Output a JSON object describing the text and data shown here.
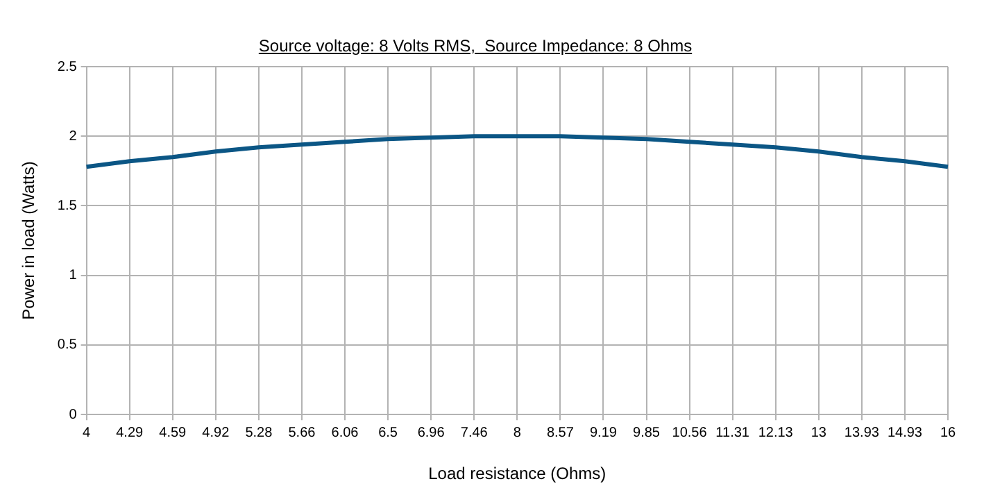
{
  "chart_data": {
    "type": "line",
    "title": "Source voltage: 8 Volts RMS,  Source Impedance: 8 Ohms",
    "xlabel": "Load resistance (Ohms)",
    "ylabel": "Power in load (Watts)",
    "categories": [
      "4",
      "4.29",
      "4.59",
      "4.92",
      "5.28",
      "5.66",
      "6.06",
      "6.5",
      "6.96",
      "7.46",
      "8",
      "8.57",
      "9.19",
      "9.85",
      "10.56",
      "11.31",
      "12.13",
      "13",
      "13.93",
      "14.93",
      "16"
    ],
    "series": [
      {
        "color": "#0b5685",
        "values": [
          1.78,
          1.82,
          1.85,
          1.89,
          1.92,
          1.94,
          1.96,
          1.98,
          1.99,
          2.0,
          2.0,
          2.0,
          1.99,
          1.98,
          1.96,
          1.94,
          1.92,
          1.89,
          1.85,
          1.82,
          1.78
        ]
      }
    ],
    "ylim": [
      0,
      2.5
    ],
    "yticks": [
      0,
      0.5,
      1,
      1.5,
      2,
      2.5
    ],
    "grid": true,
    "legend": false,
    "marker": "none",
    "line_style": "solid"
  }
}
